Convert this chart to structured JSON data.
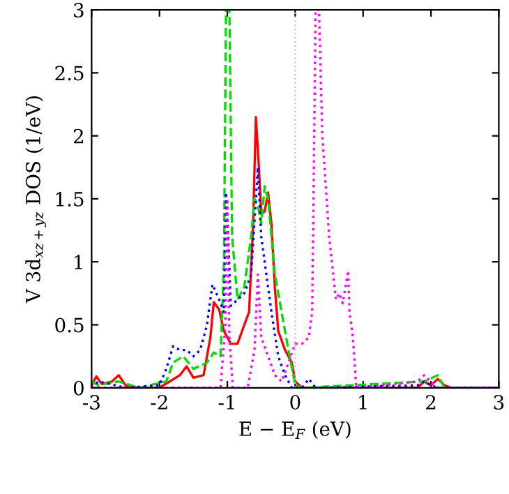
{
  "chart_data": {
    "type": "line",
    "xlabel": "E − E$_{F}$ (eV)",
    "ylabel": "V 3d$_{xz+yz}$ DOS (1/eV)",
    "xlim": [
      -3,
      3
    ],
    "ylim": [
      0,
      3
    ],
    "xticks": [
      -3,
      -2,
      -1,
      0,
      1,
      2,
      3
    ],
    "yticks": [
      0,
      0.5,
      1,
      1.5,
      2,
      2.5,
      3
    ],
    "grid": false,
    "legend": false,
    "ref_lines": [
      {
        "axis": "x",
        "value": 0,
        "color": "#c0c0c0",
        "line_style": "dotted"
      }
    ],
    "series": [
      {
        "color": "#ff0000",
        "line_style": "solid",
        "x": [
          -3,
          -2.93,
          -2.85,
          -2.7,
          -2.6,
          -2.5,
          -2.3,
          -2,
          -1.85,
          -1.7,
          -1.6,
          -1.5,
          -1.35,
          -1.25,
          -1.2,
          -1.12,
          -1.05,
          -0.95,
          -0.85,
          -0.75,
          -0.68,
          -0.62,
          -0.58,
          -0.54,
          -0.5,
          -0.45,
          -0.4,
          -0.35,
          -0.3,
          -0.25,
          -0.15,
          -0.05,
          0,
          0.1,
          1.8,
          1.9,
          2,
          2.1,
          2.2,
          2.3,
          3
        ],
        "values": [
          0.02,
          0.09,
          0.03,
          0.05,
          0.1,
          0.02,
          0,
          0,
          0.05,
          0.1,
          0.17,
          0.08,
          0.1,
          0.4,
          0.68,
          0.62,
          0.45,
          0.35,
          0.35,
          0.5,
          0.6,
          1.3,
          2.15,
          1.8,
          1.38,
          1.4,
          1.55,
          1.3,
          0.8,
          0.45,
          0.3,
          0.2,
          0.05,
          0,
          0,
          0.05,
          0.02,
          0.07,
          0.02,
          0,
          0
        ]
      },
      {
        "color": "#00dd00",
        "line_style": "dashed",
        "x": [
          -3,
          -2.9,
          -2.6,
          -2.3,
          -1.9,
          -1.8,
          -1.65,
          -1.5,
          -1.3,
          -1.2,
          -1.1,
          -1.05,
          -1.02,
          -0.97,
          -0.93,
          -0.85,
          -0.75,
          -0.65,
          -0.6,
          -0.55,
          -0.5,
          -0.45,
          -0.4,
          -0.3,
          -0.2,
          -0.1,
          0,
          0.1,
          1.9,
          2.1,
          2.2,
          3
        ],
        "values": [
          0.05,
          0.02,
          0.05,
          0,
          0.05,
          0.2,
          0.25,
          0.15,
          0.2,
          0.28,
          0.25,
          1.0,
          3,
          3,
          1.2,
          0.7,
          0.8,
          1.2,
          1.5,
          1.45,
          1.3,
          1.6,
          1.5,
          0.9,
          0.6,
          0.3,
          0.02,
          0,
          0.05,
          0.1,
          0,
          0
        ]
      },
      {
        "color": "#0000ff",
        "line_style": "dotted",
        "x": [
          -3,
          -2.9,
          -2.5,
          -2,
          -1.9,
          -1.8,
          -1.7,
          -1.6,
          -1.5,
          -1.4,
          -1.3,
          -1.22,
          -1.12,
          -1.05,
          -1.02,
          -0.98,
          -0.95,
          -0.85,
          -0.75,
          -0.65,
          -0.55,
          -0.5,
          -0.45,
          -0.35,
          -0.25,
          -0.15,
          -0.05,
          0.1,
          0.2,
          0.3,
          1.8,
          1.9,
          2,
          2.1,
          3
        ],
        "values": [
          0,
          0.05,
          0,
          0.02,
          0.15,
          0.33,
          0.3,
          0.3,
          0.25,
          0.3,
          0.5,
          0.82,
          0.7,
          0.6,
          1.55,
          1.1,
          0.65,
          0.7,
          0.75,
          0.9,
          1.75,
          1.2,
          1.0,
          0.6,
          0.25,
          0.1,
          0,
          0,
          0.07,
          0,
          0.02,
          0.05,
          0.02,
          0,
          0
        ]
      },
      {
        "color": "#ff00ff",
        "line_style": "dotted",
        "x": [
          -3,
          -1.1,
          -1.03,
          -1,
          -0.97,
          -0.92,
          -0.7,
          -0.6,
          -0.55,
          -0.5,
          -0.4,
          -0.3,
          -0.2,
          0,
          0.1,
          0.2,
          0.25,
          0.28,
          0.3,
          0.35,
          0.4,
          0.5,
          0.6,
          0.65,
          0.7,
          0.78,
          0.8,
          0.85,
          0.9,
          1.8,
          1.9,
          2,
          2.1,
          3
        ],
        "values": [
          0,
          0,
          0.5,
          1.5,
          0.4,
          0,
          0,
          0.3,
          0.9,
          0.4,
          0.25,
          0.1,
          0.05,
          0.35,
          0.35,
          0.4,
          0.6,
          2.0,
          3,
          3,
          2.0,
          1.2,
          0.7,
          0.75,
          0.67,
          0.93,
          0.6,
          0.4,
          0,
          0.05,
          0.1,
          0.05,
          0,
          0
        ]
      }
    ]
  }
}
